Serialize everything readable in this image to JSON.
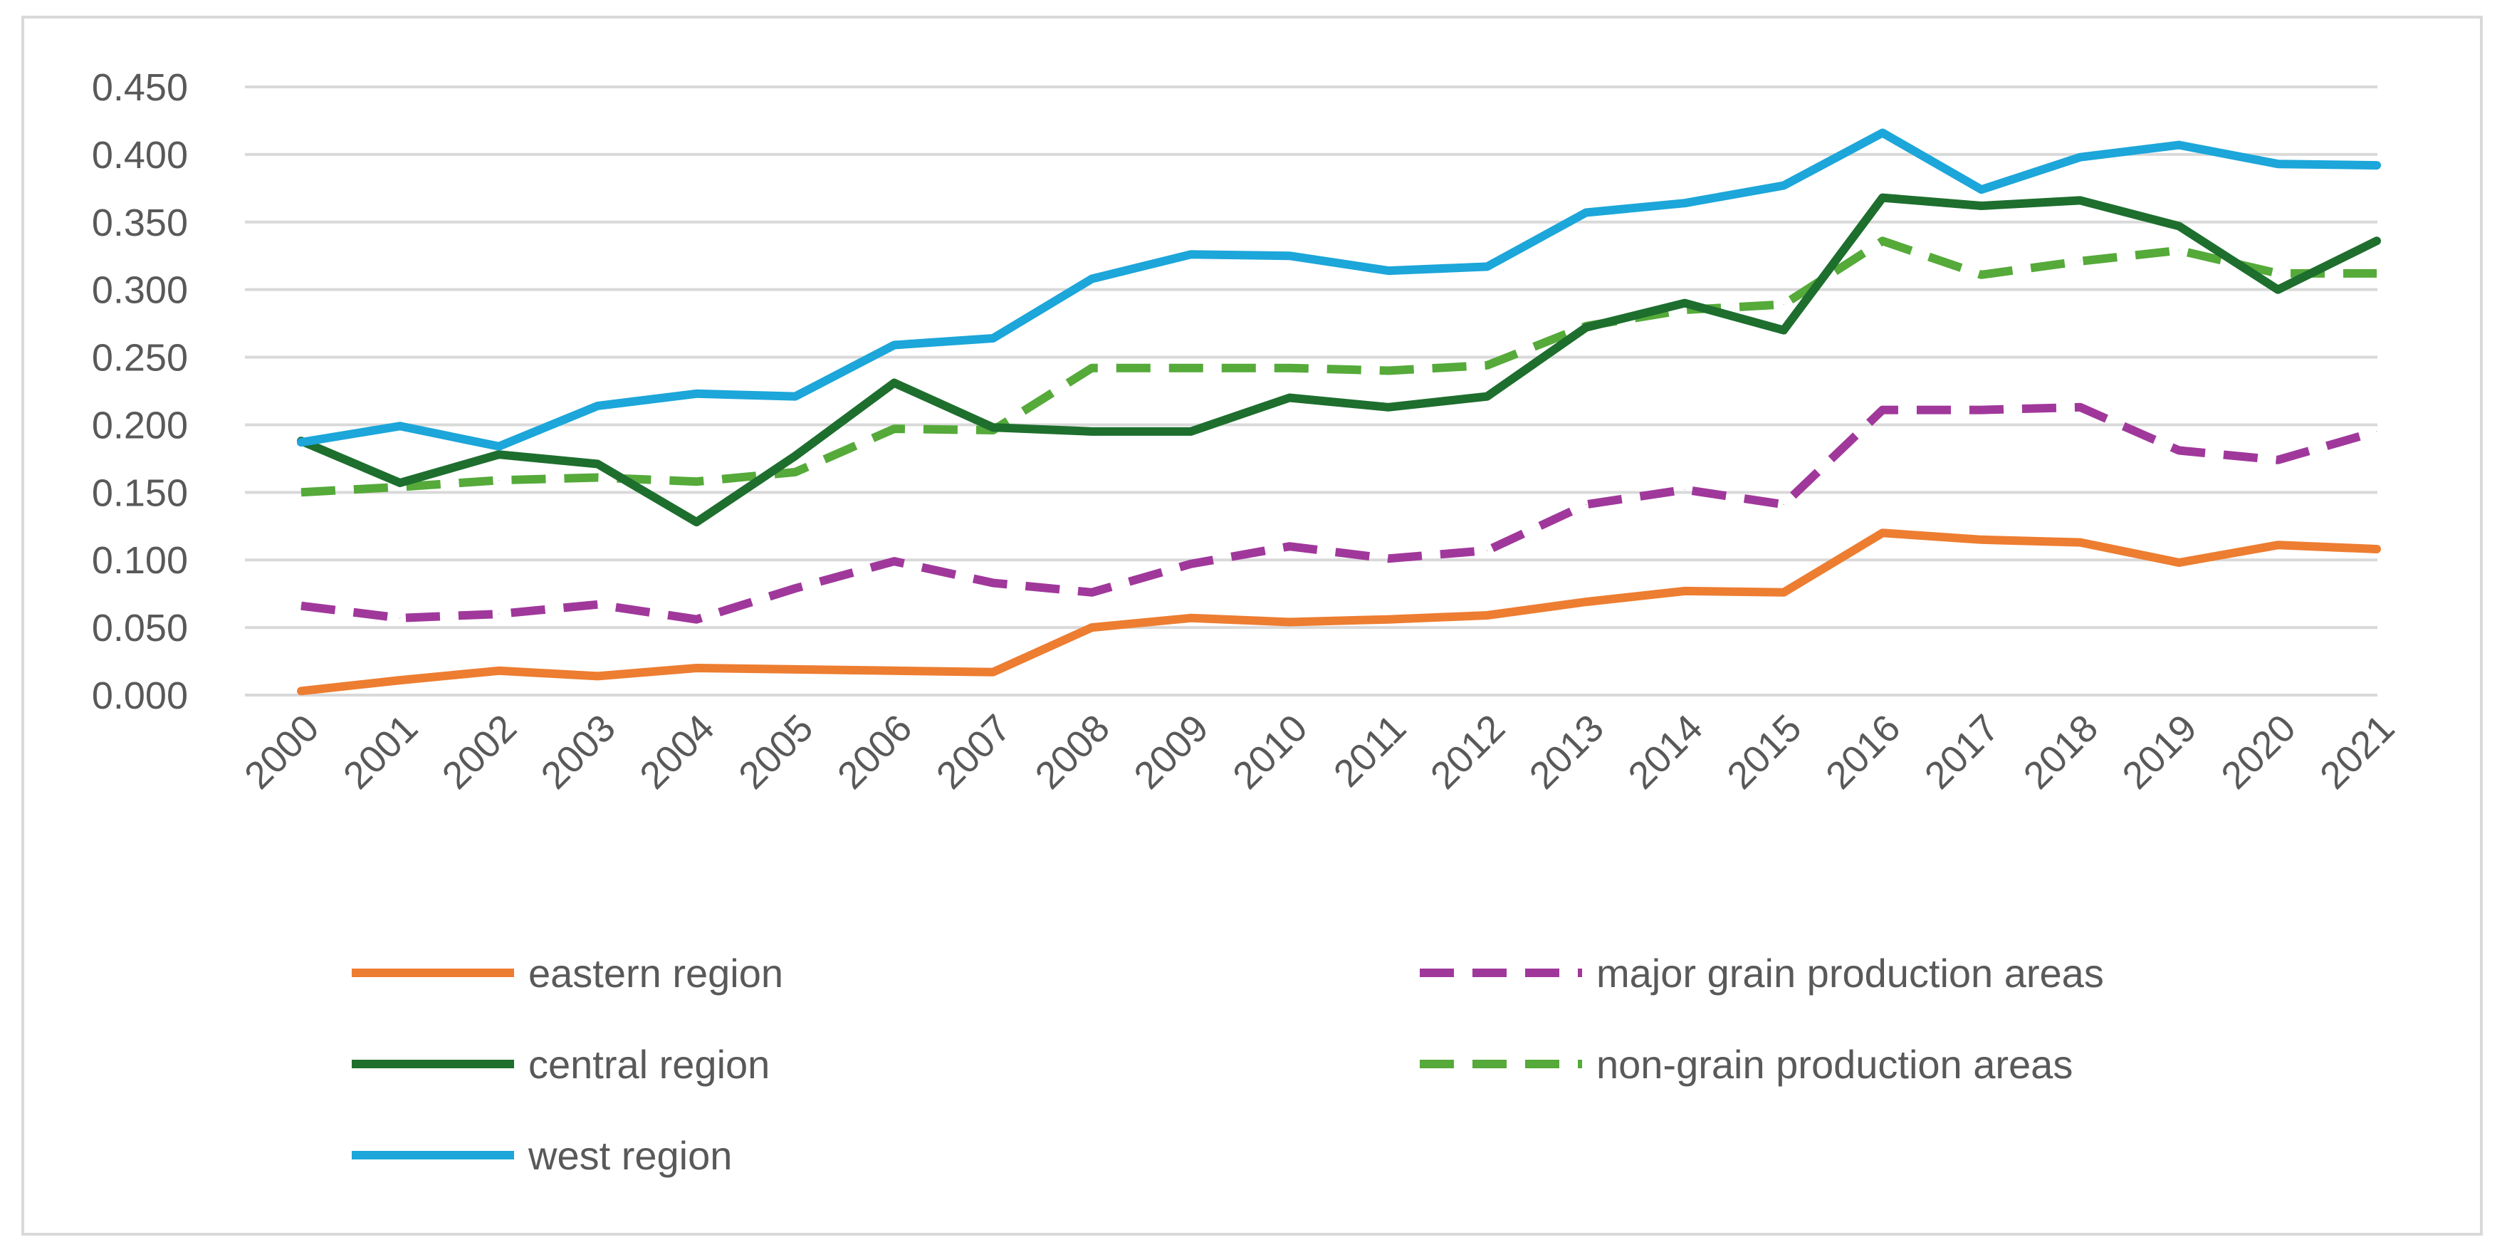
{
  "chart_data": {
    "type": "line",
    "title": "",
    "xlabel": "",
    "ylabel": "",
    "ylim": [
      0,
      0.45
    ],
    "y_ticks": [
      "0.000",
      "0.050",
      "0.100",
      "0.150",
      "0.200",
      "0.250",
      "0.300",
      "0.350",
      "0.400",
      "0.450"
    ],
    "grid": true,
    "legend_position": "bottom",
    "categories": [
      "2000",
      "2001",
      "2002",
      "2003",
      "2004",
      "2005",
      "2006",
      "2007",
      "2008",
      "2009",
      "2010",
      "2011",
      "2012",
      "2013",
      "2014",
      "2015",
      "2016",
      "2017",
      "2018",
      "2019",
      "2020",
      "2021"
    ],
    "series": [
      {
        "name": "eastern region",
        "color": "#ed7d31",
        "dash": "solid",
        "values": [
          0.003,
          0.011,
          0.018,
          0.014,
          0.02,
          0.019,
          0.018,
          0.017,
          0.05,
          0.057,
          0.054,
          0.056,
          0.059,
          0.069,
          0.077,
          0.076,
          0.12,
          0.115,
          0.113,
          0.098,
          0.111,
          0.108
        ]
      },
      {
        "name": "central region",
        "color": "#1e6e2e",
        "dash": "solid",
        "values": [
          0.188,
          0.157,
          0.178,
          0.171,
          0.128,
          0.177,
          0.231,
          0.198,
          0.195,
          0.195,
          0.22,
          0.213,
          0.221,
          0.272,
          0.29,
          0.27,
          0.368,
          0.362,
          0.366,
          0.347,
          0.3,
          0.336
        ]
      },
      {
        "name": "west region",
        "color": "#1ca6d9",
        "dash": "solid",
        "values": [
          0.187,
          0.199,
          0.184,
          0.214,
          0.223,
          0.221,
          0.259,
          0.264,
          0.308,
          0.326,
          0.325,
          0.314,
          0.317,
          0.357,
          0.364,
          0.377,
          0.416,
          0.374,
          0.398,
          0.407,
          0.393,
          0.392
        ]
      },
      {
        "name": "major grain production areas",
        "color": "#a0389b",
        "dash": "dashed",
        "values": [
          0.066,
          0.057,
          0.06,
          0.067,
          0.056,
          0.079,
          0.099,
          0.083,
          0.076,
          0.097,
          0.11,
          0.101,
          0.107,
          0.141,
          0.152,
          0.141,
          0.211,
          0.211,
          0.213,
          0.181,
          0.174,
          0.195
        ]
      },
      {
        "name": "non-grain production areas",
        "color": "#55aa3a",
        "dash": "dashed",
        "values": [
          0.15,
          0.154,
          0.159,
          0.161,
          0.158,
          0.165,
          0.197,
          0.196,
          0.242,
          0.242,
          0.242,
          0.24,
          0.244,
          0.273,
          0.285,
          0.289,
          0.336,
          0.311,
          0.321,
          0.329,
          0.312,
          0.312
        ]
      }
    ]
  }
}
